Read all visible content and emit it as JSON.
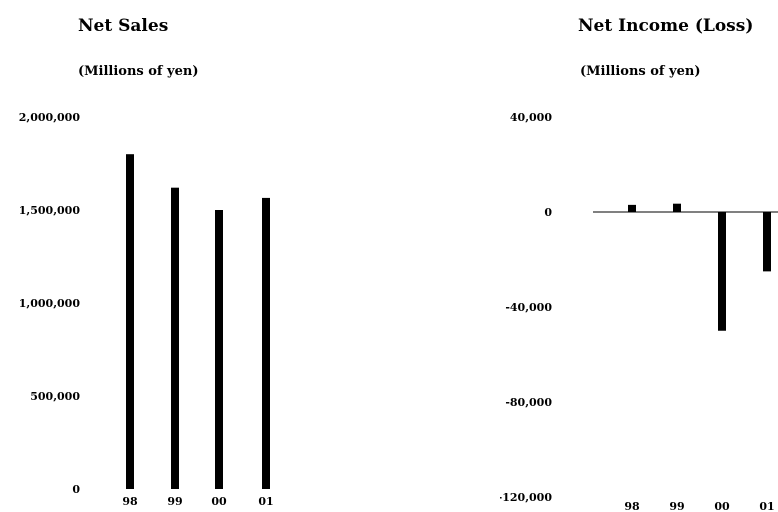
{
  "chart_data": [
    {
      "type": "bar",
      "title": "Net Sales",
      "subtitle": "(Millions of yen)",
      "categories": [
        "98",
        "99",
        "00",
        "01"
      ],
      "values": [
        1800000,
        1620000,
        1500000,
        1565000
      ],
      "ylim": [
        0,
        2000000
      ],
      "y_ticks": [
        0,
        500000,
        1000000,
        1500000,
        2000000
      ],
      "y_tick_labels": [
        "0",
        "500,000",
        "1,000,000",
        "1,500,000",
        "2,000,000"
      ],
      "grid": false,
      "bar_color": "#000000"
    },
    {
      "type": "bar",
      "title": "Net Income (Loss)",
      "subtitle": "(Millions of yen)",
      "categories": [
        "98",
        "99",
        "00",
        "01"
      ],
      "values": [
        3000,
        3500,
        -50000,
        -25000
      ],
      "ylim": [
        -120000,
        40000
      ],
      "y_ticks": [
        -120000,
        -80000,
        -40000,
        0,
        40000
      ],
      "y_tick_labels": [
        "-120,000",
        "-80,000",
        "-40,000",
        "0",
        "40,000"
      ],
      "grid": false,
      "bar_color": "#000000"
    }
  ]
}
